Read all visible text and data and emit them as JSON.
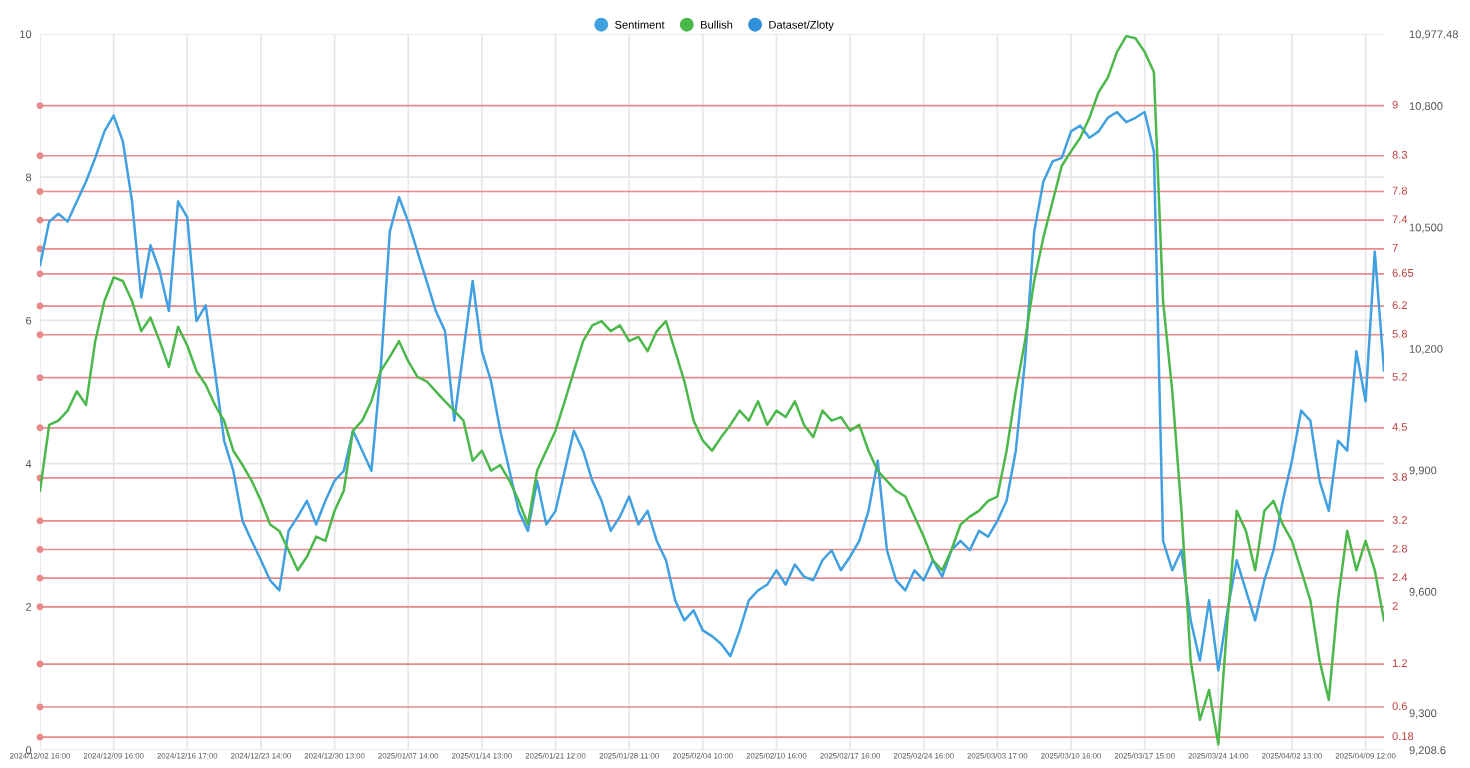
{
  "chart_data": {
    "type": "line",
    "categories": [
      "2024/12/02 16:00",
      null,
      null,
      null,
      null,
      null,
      null,
      null,
      "2024/12/09 16:00",
      null,
      null,
      null,
      null,
      null,
      null,
      null,
      "2024/12/16 17:00",
      null,
      null,
      null,
      null,
      null,
      null,
      null,
      "2024/12/23 14:00",
      null,
      null,
      null,
      null,
      null,
      null,
      null,
      "2024/12/30 13:00",
      null,
      null,
      null,
      null,
      null,
      null,
      null,
      "2025/01/07 14:00",
      null,
      null,
      null,
      null,
      null,
      null,
      null,
      "2025/01/14 13:00",
      null,
      null,
      null,
      null,
      null,
      null,
      null,
      "2025/01/21 12:00",
      null,
      null,
      null,
      null,
      null,
      null,
      null,
      "2025/01/28 11:00",
      null,
      null,
      null,
      null,
      null,
      null,
      null,
      "2025/02/04 10:00",
      null,
      null,
      null,
      null,
      null,
      null,
      null,
      "2025/02/10 16:00",
      null,
      null,
      null,
      null,
      null,
      null,
      null,
      "2025/02/17 16:00",
      null,
      null,
      null,
      null,
      null,
      null,
      null,
      "2025/02/24 16:00",
      null,
      null,
      null,
      null,
      null,
      null,
      null,
      "2025/03/03 17:00",
      null,
      null,
      null,
      null,
      null,
      null,
      null,
      "2025/03/10 16:00",
      null,
      null,
      null,
      null,
      null,
      null,
      null,
      "2025/03/17 15:00",
      null,
      null,
      null,
      null,
      null,
      null,
      null,
      "2025/03/24 14:00",
      null,
      null,
      null,
      null,
      null,
      null,
      null,
      "2025/04/02 13:00",
      null,
      null,
      null,
      null,
      null,
      null,
      null,
      "2025/04/09 12:00",
      null,
      null
    ],
    "series": [
      {
        "name": "Sentiment",
        "color": "#41a0e0",
        "values": [
          6.77,
          7.38,
          7.49,
          7.38,
          7.66,
          7.94,
          8.27,
          8.64,
          8.86,
          8.5,
          7.66,
          6.32,
          7.05,
          6.69,
          6.13,
          7.66,
          7.44,
          5.99,
          6.21,
          5.29,
          4.32,
          3.9,
          3.2,
          2.92,
          2.65,
          2.37,
          2.23,
          3.06,
          3.26,
          3.48,
          3.15,
          3.48,
          3.76,
          3.9,
          4.46,
          4.18,
          3.9,
          5.29,
          7.24,
          7.72,
          7.38,
          6.96,
          6.55,
          6.13,
          5.85,
          4.6,
          5.57,
          6.55,
          5.57,
          5.15,
          4.46,
          3.9,
          3.34,
          3.06,
          3.76,
          3.15,
          3.34,
          3.9,
          4.46,
          4.18,
          3.76,
          3.48,
          3.06,
          3.26,
          3.54,
          3.15,
          3.34,
          2.92,
          2.65,
          2.09,
          1.81,
          1.95,
          1.67,
          1.59,
          1.48,
          1.31,
          1.67,
          2.09,
          2.23,
          2.31,
          2.51,
          2.31,
          2.59,
          2.42,
          2.37,
          2.65,
          2.79,
          2.51,
          2.7,
          2.92,
          3.34,
          4.04,
          2.79,
          2.37,
          2.23,
          2.51,
          2.37,
          2.65,
          2.42,
          2.79,
          2.92,
          2.79,
          3.06,
          2.98,
          3.2,
          3.48,
          4.18,
          5.43,
          7.24,
          7.94,
          8.22,
          8.27,
          8.64,
          8.72,
          8.55,
          8.64,
          8.83,
          8.91,
          8.77,
          8.83,
          8.91,
          8.36,
          2.92,
          2.51,
          2.79,
          1.81,
          1.25,
          2.09,
          1.11,
          1.95,
          2.65,
          2.23,
          1.81,
          2.37,
          2.79,
          3.48,
          4.04,
          4.74,
          4.6,
          3.76,
          3.34,
          4.32,
          4.18,
          5.57,
          4.87,
          6.96,
          5.3
        ]
      },
      {
        "name": "Bullish",
        "color": "#4cb84c",
        "values": [
          3.62,
          4.54,
          4.6,
          4.74,
          5.01,
          4.82,
          5.71,
          6.27,
          6.6,
          6.55,
          6.27,
          5.85,
          6.04,
          5.71,
          5.35,
          5.91,
          5.65,
          5.29,
          5.1,
          4.82,
          4.6,
          4.18,
          3.98,
          3.76,
          3.48,
          3.15,
          3.06,
          2.79,
          2.51,
          2.7,
          2.98,
          2.92,
          3.34,
          3.62,
          4.46,
          4.6,
          4.87,
          5.29,
          5.49,
          5.71,
          5.43,
          5.21,
          5.15,
          5.01,
          4.87,
          4.74,
          4.6,
          4.04,
          4.18,
          3.9,
          3.98,
          3.76,
          3.48,
          3.15,
          3.9,
          4.18,
          4.46,
          4.87,
          5.29,
          5.71,
          5.93,
          5.99,
          5.85,
          5.93,
          5.71,
          5.77,
          5.57,
          5.85,
          5.99,
          5.57,
          5.15,
          4.6,
          4.32,
          4.18,
          4.37,
          4.54,
          4.74,
          4.6,
          4.87,
          4.54,
          4.74,
          4.65,
          4.87,
          4.54,
          4.37,
          4.74,
          4.6,
          4.65,
          4.46,
          4.54,
          4.18,
          3.9,
          3.76,
          3.62,
          3.54,
          3.26,
          2.98,
          2.65,
          2.51,
          2.79,
          3.15,
          3.26,
          3.34,
          3.48,
          3.54,
          4.18,
          5.01,
          5.71,
          6.55,
          7.16,
          7.66,
          8.16,
          8.36,
          8.55,
          8.83,
          9.19,
          9.39,
          9.75,
          9.97,
          9.94,
          9.75,
          9.47,
          6.27,
          5.01,
          3.34,
          1.25,
          0.42,
          0.84,
          0.08,
          1.81,
          3.34,
          3.06,
          2.51,
          3.34,
          3.48,
          3.15,
          2.92,
          2.51,
          2.09,
          1.25,
          0.7,
          2.09,
          3.06,
          2.51,
          2.92,
          2.51,
          1.81
        ]
      },
      {
        "name": "Dataset/Zloty",
        "color": "#2f8fd8",
        "values": [
          null,
          null,
          null,
          null,
          null,
          null,
          null,
          null,
          null,
          null,
          null,
          null,
          null,
          null,
          null,
          null,
          null,
          null,
          null,
          null,
          null,
          null,
          null,
          null,
          null,
          null,
          null,
          null,
          null,
          null,
          null,
          null,
          null,
          null,
          null,
          null,
          null,
          null,
          null,
          null,
          null,
          null,
          null,
          null,
          null,
          null,
          null,
          null,
          null,
          null,
          null,
          null,
          null,
          null,
          null,
          null,
          null,
          null,
          null,
          null,
          null,
          null,
          null,
          null,
          null,
          null,
          null,
          null,
          null,
          null,
          null,
          null,
          null,
          null,
          null,
          null,
          null,
          null,
          null,
          null,
          null,
          null,
          null,
          null,
          null,
          null,
          null,
          null,
          null,
          null,
          null,
          null,
          null,
          null,
          null,
          null,
          null,
          null,
          null,
          null,
          null,
          null,
          null,
          null,
          null,
          null,
          null,
          null,
          null,
          null,
          null,
          null,
          null,
          null,
          null,
          null,
          null,
          null,
          null,
          null,
          null,
          null,
          null,
          null,
          null,
          null,
          null,
          null,
          null,
          null,
          null,
          null,
          null,
          null,
          null,
          null,
          null,
          null,
          null,
          null,
          null,
          null,
          null,
          null,
          null,
          null,
          null
        ]
      }
    ],
    "ylim": [
      0,
      10
    ],
    "yticks": [
      0,
      2,
      4,
      6,
      8,
      10
    ],
    "y2lim": [
      9208.6,
      10977.48
    ],
    "y2ticks": [
      {
        "value": 9208.6,
        "label": "9,208.6"
      },
      {
        "value": 9300,
        "label": "9,300"
      },
      {
        "value": 9600,
        "label": "9,600"
      },
      {
        "value": 9900,
        "label": "9,900"
      },
      {
        "value": 10200,
        "label": "10,200"
      },
      {
        "value": 10500,
        "label": "10,500"
      },
      {
        "value": 10800,
        "label": "10,800"
      },
      {
        "value": 10977.48,
        "label": "10,977.48"
      }
    ],
    "ref_lines": [
      {
        "axis": "y",
        "value": 9,
        "label": "9",
        "color": "#e88a8a"
      },
      {
        "axis": "y",
        "value": 8.3,
        "label": "8.3",
        "color": "#e88a8a"
      },
      {
        "axis": "y",
        "value": 7.8,
        "label": "7.8",
        "color": "#e88a8a"
      },
      {
        "axis": "y",
        "value": 7.4,
        "label": "7.4",
        "color": "#e88a8a"
      },
      {
        "axis": "y",
        "value": 7,
        "label": "7",
        "color": "#e88a8a"
      },
      {
        "axis": "y",
        "value": 6.65,
        "label": "6.65",
        "color": "#e88a8a"
      },
      {
        "axis": "y",
        "value": 6.2,
        "label": "6.2",
        "color": "#e88a8a"
      },
      {
        "axis": "y",
        "value": 5.8,
        "label": "5.8",
        "color": "#e88a8a"
      },
      {
        "axis": "y",
        "value": 5.2,
        "label": "5.2",
        "color": "#e88a8a"
      },
      {
        "axis": "y",
        "value": 4.5,
        "label": "4.5",
        "color": "#e88a8a"
      },
      {
        "axis": "y",
        "value": 3.8,
        "label": "3.8",
        "color": "#e88a8a"
      },
      {
        "axis": "y",
        "value": 3.2,
        "label": "3.2",
        "color": "#e88a8a"
      },
      {
        "axis": "y",
        "value": 2.8,
        "label": "2.8",
        "color": "#e88a8a"
      },
      {
        "axis": "y",
        "value": 2.4,
        "label": "2.4",
        "color": "#e88a8a"
      },
      {
        "axis": "y",
        "value": 2,
        "label": "2",
        "color": "#e88a8a"
      },
      {
        "axis": "y",
        "value": 1.2,
        "label": "1.2",
        "color": "#e88a8a"
      },
      {
        "axis": "y",
        "value": 0.6,
        "label": "0.6",
        "color": "#e88a8a"
      },
      {
        "axis": "y",
        "value": 0.18,
        "label": "0.18",
        "color": "#e88a8a"
      }
    ],
    "grid": true,
    "legend": "top",
    "marker": "none",
    "line_style": "solid"
  }
}
